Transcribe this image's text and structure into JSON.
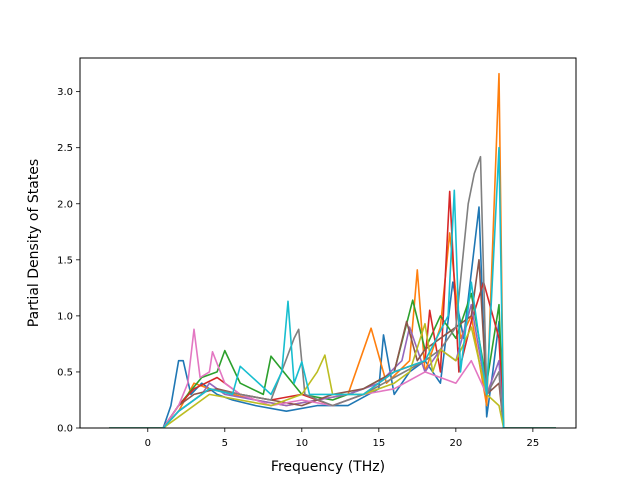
{
  "chart_data": {
    "type": "line",
    "title": "",
    "xlabel": "Frequency (THz)",
    "ylabel": "Partial Density of States",
    "xlim": [
      -4.4,
      27.8
    ],
    "ylim": [
      0.0,
      3.3
    ],
    "grid": false,
    "legend": "none",
    "xticks": [
      {
        "value": 0,
        "label": "0"
      },
      {
        "value": 5,
        "label": "5"
      },
      {
        "value": 10,
        "label": "10"
      },
      {
        "value": 15,
        "label": "15"
      },
      {
        "value": 20,
        "label": "20"
      },
      {
        "value": 25,
        "label": "25"
      }
    ],
    "yticks": [
      {
        "value": 0.0,
        "label": "0.0"
      },
      {
        "value": 0.5,
        "label": "0.5"
      },
      {
        "value": 1.0,
        "label": "1.0"
      },
      {
        "value": 1.5,
        "label": "1.5"
      },
      {
        "value": 2.0,
        "label": "2.0"
      },
      {
        "value": 2.5,
        "label": "2.5"
      },
      {
        "value": 3.0,
        "label": "3.0"
      }
    ],
    "series": [
      {
        "color": "#1f77b4",
        "x": [
          -2.5,
          1.0,
          1.5,
          2.0,
          2.3,
          2.8,
          3.5,
          4.5,
          5.5,
          7.0,
          9.0,
          11.0,
          13.0,
          15.0,
          15.3,
          16.0,
          17.0,
          18.0,
          19.0,
          19.8,
          20.5,
          21.5,
          22.0,
          22.4,
          22.8,
          23.1,
          26.5
        ],
        "y": [
          0,
          0,
          0.2,
          0.6,
          0.6,
          0.3,
          0.4,
          0.3,
          0.25,
          0.2,
          0.15,
          0.2,
          0.2,
          0.35,
          0.83,
          0.3,
          0.5,
          0.6,
          0.4,
          1.3,
          0.8,
          1.97,
          0.1,
          0.5,
          0.95,
          0,
          0
        ]
      },
      {
        "color": "#ff7f0e",
        "x": [
          -2.5,
          1.0,
          2.0,
          3.0,
          4.0,
          5.5,
          7.0,
          9.0,
          11.0,
          13.0,
          14.5,
          15.5,
          17.0,
          17.5,
          18.0,
          19.0,
          19.6,
          20.3,
          21.0,
          22.0,
          22.8,
          23.1,
          26.5
        ],
        "y": [
          0,
          0,
          0.15,
          0.4,
          0.35,
          0.3,
          0.25,
          0.2,
          0.25,
          0.3,
          0.89,
          0.4,
          0.6,
          1.41,
          0.5,
          0.9,
          1.74,
          0.8,
          1.0,
          0.2,
          3.16,
          0,
          0
        ]
      },
      {
        "color": "#2ca02c",
        "x": [
          -2.5,
          1.0,
          2.0,
          3.5,
          4.5,
          5.0,
          6.0,
          7.5,
          8.0,
          10.0,
          12.0,
          14.0,
          16.0,
          17.2,
          18.0,
          19.0,
          20.0,
          21.0,
          22.0,
          22.8,
          23.1,
          26.5
        ],
        "y": [
          0,
          0,
          0.2,
          0.45,
          0.5,
          0.69,
          0.4,
          0.3,
          0.64,
          0.3,
          0.25,
          0.35,
          0.5,
          1.14,
          0.7,
          1.0,
          0.8,
          1.2,
          0.4,
          1.1,
          0,
          0
        ]
      },
      {
        "color": "#d62728",
        "x": [
          -2.5,
          1.0,
          2.0,
          3.0,
          4.5,
          6.0,
          8.0,
          10.0,
          12.0,
          14.0,
          16.0,
          18.0,
          18.3,
          19.0,
          19.6,
          20.2,
          21.0,
          21.8,
          22.8,
          23.1,
          26.5
        ],
        "y": [
          0,
          0,
          0.2,
          0.35,
          0.45,
          0.3,
          0.25,
          0.3,
          0.2,
          0.3,
          0.5,
          0.6,
          1.05,
          0.5,
          2.11,
          0.5,
          0.95,
          1.3,
          0.8,
          0,
          0
        ]
      },
      {
        "color": "#9467bd",
        "x": [
          -2.5,
          1.0,
          2.0,
          3.5,
          4.0,
          5.0,
          7.0,
          9.0,
          11.0,
          13.0,
          15.0,
          16.5,
          17.0,
          18.0,
          19.0,
          20.0,
          21.0,
          22.0,
          22.8,
          23.1,
          26.5
        ],
        "y": [
          0,
          0,
          0.15,
          0.3,
          0.4,
          0.3,
          0.25,
          0.2,
          0.25,
          0.3,
          0.4,
          0.6,
          0.9,
          0.5,
          0.7,
          0.6,
          1.1,
          0.3,
          0.6,
          0,
          0
        ]
      },
      {
        "color": "#8c564b",
        "x": [
          -2.5,
          1.0,
          2.0,
          3.0,
          4.5,
          6.0,
          8.0,
          10.0,
          12.0,
          14.0,
          16.0,
          16.8,
          17.5,
          18.0,
          19.0,
          20.0,
          21.0,
          21.5,
          22.0,
          22.8,
          23.1,
          26.5
        ],
        "y": [
          0,
          0,
          0.2,
          0.3,
          0.35,
          0.3,
          0.25,
          0.2,
          0.3,
          0.35,
          0.5,
          0.95,
          0.6,
          0.7,
          0.8,
          0.9,
          1.0,
          1.5,
          0.3,
          0.4,
          0,
          0
        ]
      },
      {
        "color": "#e377c2",
        "x": [
          -2.5,
          1.0,
          2.0,
          2.6,
          3.0,
          3.4,
          4.0,
          4.2,
          5.0,
          6.0,
          8.0,
          10.0,
          12.0,
          14.0,
          16.0,
          18.0,
          20.0,
          21.0,
          22.0,
          22.8,
          23.1,
          26.5
        ],
        "y": [
          0,
          0,
          0.2,
          0.4,
          0.88,
          0.45,
          0.5,
          0.68,
          0.4,
          0.3,
          0.2,
          0.25,
          0.2,
          0.3,
          0.35,
          0.5,
          0.4,
          0.6,
          0.3,
          0.5,
          0,
          0
        ]
      },
      {
        "color": "#7f7f7f",
        "x": [
          -2.5,
          1.0,
          2.0,
          4.0,
          6.0,
          8.0,
          9.5,
          9.8,
          10.2,
          12.0,
          14.0,
          16.0,
          18.0,
          19.0,
          20.0,
          20.8,
          21.2,
          21.6,
          22.0,
          22.8,
          23.1,
          26.5
        ],
        "y": [
          0,
          0,
          0.15,
          0.35,
          0.3,
          0.25,
          0.8,
          0.88,
          0.3,
          0.2,
          0.3,
          0.45,
          0.6,
          0.7,
          0.9,
          2.0,
          2.27,
          2.42,
          0.3,
          0.5,
          0,
          0
        ]
      },
      {
        "color": "#bcbd22",
        "x": [
          -2.5,
          1.0,
          2.0,
          4.0,
          6.0,
          8.0,
          10.0,
          11.0,
          11.5,
          12.0,
          14.0,
          16.0,
          17.0,
          18.0,
          18.5,
          19.0,
          20.0,
          21.0,
          22.0,
          22.8,
          23.1,
          26.5
        ],
        "y": [
          0,
          0,
          0.1,
          0.3,
          0.25,
          0.2,
          0.3,
          0.5,
          0.65,
          0.3,
          0.3,
          0.4,
          0.5,
          0.93,
          0.5,
          0.7,
          0.6,
          0.9,
          0.3,
          0.2,
          0,
          0
        ]
      },
      {
        "color": "#17becf",
        "x": [
          -2.5,
          1.0,
          2.0,
          4.0,
          5.5,
          6.0,
          8.0,
          8.7,
          9.1,
          9.5,
          10.0,
          10.5,
          12.0,
          14.0,
          16.0,
          18.0,
          19.5,
          19.9,
          20.3,
          21.0,
          22.0,
          22.8,
          23.1,
          26.5
        ],
        "y": [
          0,
          0,
          0.15,
          0.35,
          0.3,
          0.55,
          0.3,
          0.5,
          1.13,
          0.4,
          0.59,
          0.3,
          0.3,
          0.3,
          0.5,
          0.6,
          1.0,
          2.12,
          0.5,
          1.3,
          0.3,
          2.5,
          0,
          0
        ]
      }
    ]
  }
}
